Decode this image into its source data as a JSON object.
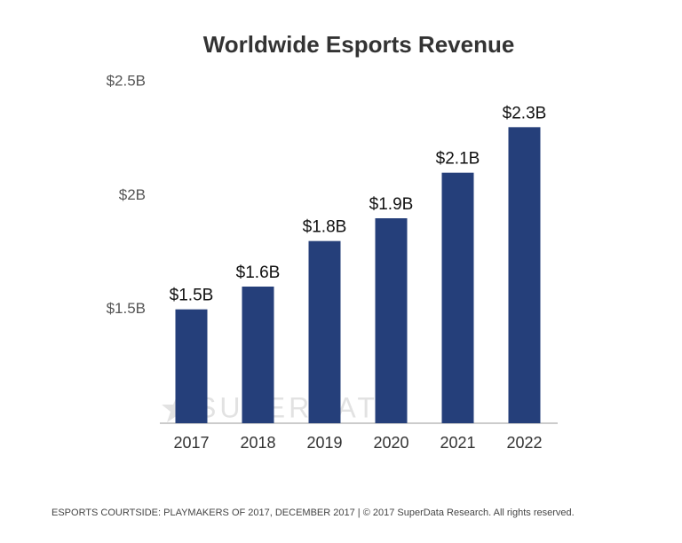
{
  "chart_data": {
    "type": "bar",
    "title": "Worldwide Esports Revenue",
    "categories": [
      "2017",
      "2018",
      "2019",
      "2020",
      "2021",
      "2022"
    ],
    "values": [
      1.5,
      1.6,
      1.8,
      1.9,
      2.1,
      2.3
    ],
    "value_labels": [
      "$1.5B",
      "$1.6B",
      "$1.8B",
      "$1.9B",
      "$2.1B",
      "$2.3B"
    ],
    "color": "#253f7a",
    "ylim": [
      1,
      2.5
    ],
    "yticks": [
      {
        "value": 1.5,
        "label": "$1.5B"
      },
      {
        "value": 2,
        "label": "$2B"
      },
      {
        "value": 2.5,
        "label": "$2.5B"
      }
    ],
    "grid": false,
    "watermark": "SUPERDATA",
    "footer": "ESPORTS COURTSIDE: PLAYMAKERS OF 2017, DECEMBER 2017  |  © 2017 SuperData Research. All rights reserved."
  }
}
